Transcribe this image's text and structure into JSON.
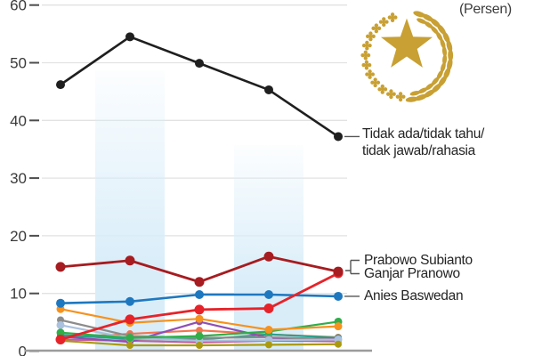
{
  "header": {
    "unit_label": "(Persen)"
  },
  "emblem": {
    "name": "gold-star-wreath-presidential-seal",
    "color": "#C8A033"
  },
  "annotations": {
    "tidak_line1": "Tidak ada/tidak tahu/",
    "tidak_line2": "tidak jawab/rahasia",
    "prabowo": "Prabowo Subianto",
    "ganjar": "Ganjar Pranowo",
    "anies": "Anies Baswedan"
  },
  "colors": {
    "axis_line": "#9c9c9c",
    "tick": "#4d4d4d",
    "grid": "#e2e2e2",
    "leader": "#555555",
    "band": "#d9edf9"
  },
  "chart_data": {
    "type": "line",
    "title": "",
    "unit": "Persen",
    "x": [
      1,
      2,
      3,
      4,
      5
    ],
    "x_axis_labels_visible": false,
    "ylim": [
      0,
      60
    ],
    "y_ticks": [
      0,
      10,
      20,
      30,
      40,
      50,
      60
    ],
    "grid": true,
    "legend_position": "right-annotations",
    "highlight_bands": [
      {
        "at_x": 2,
        "top_value": 48.7
      },
      {
        "at_x": 4,
        "top_value": 35.7
      }
    ],
    "series": [
      {
        "id": "magenta",
        "label": null,
        "color": "#c35f9f",
        "values": [
          2.0,
          1.8,
          1.5,
          1.8,
          1.7
        ],
        "line_width": 2.2,
        "dot_radius": 4
      },
      {
        "id": "coral",
        "label": null,
        "color": "#f3744f",
        "values": [
          2.3,
          3.0,
          3.6,
          2.9,
          2.4
        ],
        "line_width": 2.2,
        "dot_radius": 4
      },
      {
        "id": "teal",
        "label": null,
        "color": "#2aa08d",
        "values": [
          2.8,
          2.1,
          2.0,
          2.9,
          2.3
        ],
        "line_width": 2.2,
        "dot_radius": 4
      },
      {
        "id": "purple",
        "label": null,
        "color": "#8e4fb5",
        "values": [
          2.5,
          1.6,
          5.1,
          2.3,
          2.1
        ],
        "line_width": 2.2,
        "dot_radius": 4
      },
      {
        "id": "gray",
        "label": null,
        "color": "#8c8c8c",
        "values": [
          5.4,
          2.6,
          2.3,
          2.4,
          2.0
        ],
        "line_width": 2.2,
        "dot_radius": 4
      },
      {
        "id": "light-steel-blue",
        "label": null,
        "color": "#a9c1de",
        "values": [
          4.5,
          2.2,
          1.8,
          1.9,
          2.0
        ],
        "line_width": 2.2,
        "dot_radius": 4.5
      },
      {
        "id": "olive",
        "label": null,
        "color": "#ab9a10",
        "values": [
          1.8,
          1.0,
          1.0,
          1.1,
          1.2
        ],
        "line_width": 2.2,
        "dot_radius": 4
      },
      {
        "id": "green",
        "label": null,
        "color": "#2fae4a",
        "values": [
          3.2,
          2.3,
          2.6,
          3.4,
          5.1
        ],
        "line_width": 2.2,
        "dot_radius": 4.5
      },
      {
        "id": "orange",
        "label": null,
        "color": "#f6921e",
        "values": [
          7.3,
          4.9,
          5.6,
          3.7,
          4.3
        ],
        "line_width": 2.2,
        "dot_radius": 4.5
      },
      {
        "id": "anies",
        "label": "Anies Baswedan",
        "color": "#1e78bf",
        "values": [
          8.3,
          8.6,
          9.8,
          9.8,
          9.5
        ],
        "line_width": 2.6,
        "dot_radius": 5
      },
      {
        "id": "ganjar",
        "label": "Ganjar Pranowo",
        "color": "#e62329",
        "values": [
          2.0,
          5.5,
          7.2,
          7.4,
          13.5
        ],
        "line_width": 2.8,
        "dot_radius": 5.5
      },
      {
        "id": "prabowo",
        "label": "Prabowo Subianto",
        "color": "#a61c20",
        "values": [
          14.6,
          15.7,
          12.0,
          16.4,
          13.8
        ],
        "line_width": 2.8,
        "dot_radius": 5.5
      },
      {
        "id": "tidak",
        "label": "Tidak ada/tidak tahu/tidak jawab/rahasia",
        "color": "#1f1f1f",
        "values": [
          46.2,
          54.5,
          49.9,
          45.3,
          37.2
        ],
        "line_width": 2.6,
        "dot_radius": 5
      }
    ]
  }
}
